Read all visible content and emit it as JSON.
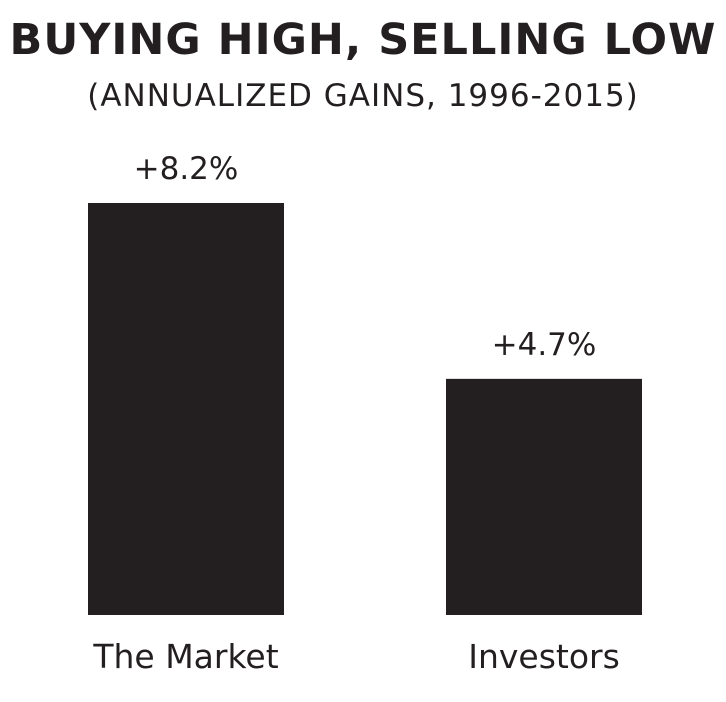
{
  "chart_data": {
    "type": "bar",
    "title": "BUYING HIGH, SELLING LOW",
    "subtitle": "(ANNUALIZED GAINS, 1996-2015)",
    "categories": [
      "The Market",
      "Investors"
    ],
    "values": [
      8.2,
      4.7
    ],
    "data_labels": [
      "+8.2%",
      "+4.7%"
    ],
    "ylim": [
      0,
      8.2
    ],
    "grid": false,
    "legend": "none",
    "bar_color": "#231f20"
  }
}
